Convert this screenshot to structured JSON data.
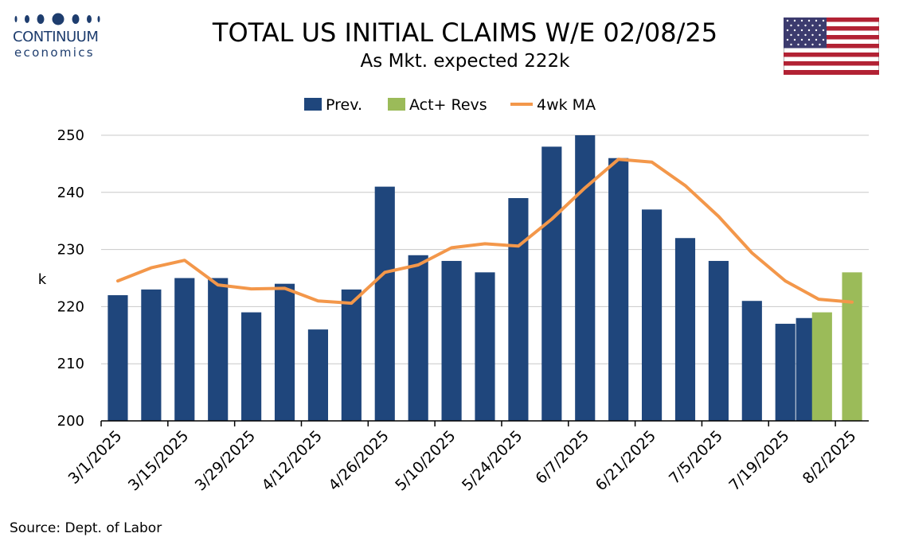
{
  "logo": {
    "name": "CONTINUUM",
    "sub": "economics",
    "color": "#1e3d6e"
  },
  "flag_icon": "us-flag-icon",
  "source": "Source: Dept. of Labor",
  "colors": {
    "prev": "#1f467c",
    "act": "#9bbb59",
    "ma": "#f3974a",
    "grid": "#c8c8c8",
    "axis": "#000000"
  },
  "chart_data": {
    "type": "bar",
    "title": "TOTAL US INITIAL CLAIMS W/E 02/08/25",
    "subtitle": "As Mkt. expected 222k",
    "ylabel": "k",
    "ylim": [
      200,
      250
    ],
    "yticks": [
      200,
      210,
      220,
      230,
      240,
      250
    ],
    "grid": true,
    "legend_position": "top-center",
    "x_tick_labels": [
      "3/1/2025",
      "3/15/2025",
      "3/29/2025",
      "4/12/2025",
      "4/26/2025",
      "5/10/2025",
      "5/24/2025",
      "6/7/2025",
      "6/21/2025",
      "7/5/2025",
      "7/19/2025",
      "8/2/2025"
    ],
    "x_tick_every": 2,
    "series": [
      {
        "name": "Prev.",
        "type": "bar",
        "values": [
          222,
          223,
          225,
          225,
          219,
          224,
          216,
          223,
          241,
          229,
          228,
          226,
          239,
          248,
          250,
          246,
          237,
          232,
          228,
          221,
          217,
          218
        ]
      },
      {
        "name": "Act+ Revs",
        "type": "bar",
        "values": [
          null,
          null,
          null,
          null,
          null,
          null,
          null,
          null,
          null,
          null,
          null,
          null,
          null,
          null,
          null,
          null,
          null,
          null,
          null,
          null,
          null,
          219,
          226
        ]
      },
      {
        "name": "4wk MA",
        "type": "line",
        "values": [
          224.5,
          226.8,
          228.1,
          223.8,
          223.1,
          223.2,
          221.0,
          220.6,
          226.0,
          227.3,
          230.3,
          231.0,
          230.6,
          235.3,
          240.8,
          245.8,
          245.3,
          241.2,
          235.8,
          229.4,
          224.5,
          221.3,
          220.8
        ]
      }
    ]
  }
}
